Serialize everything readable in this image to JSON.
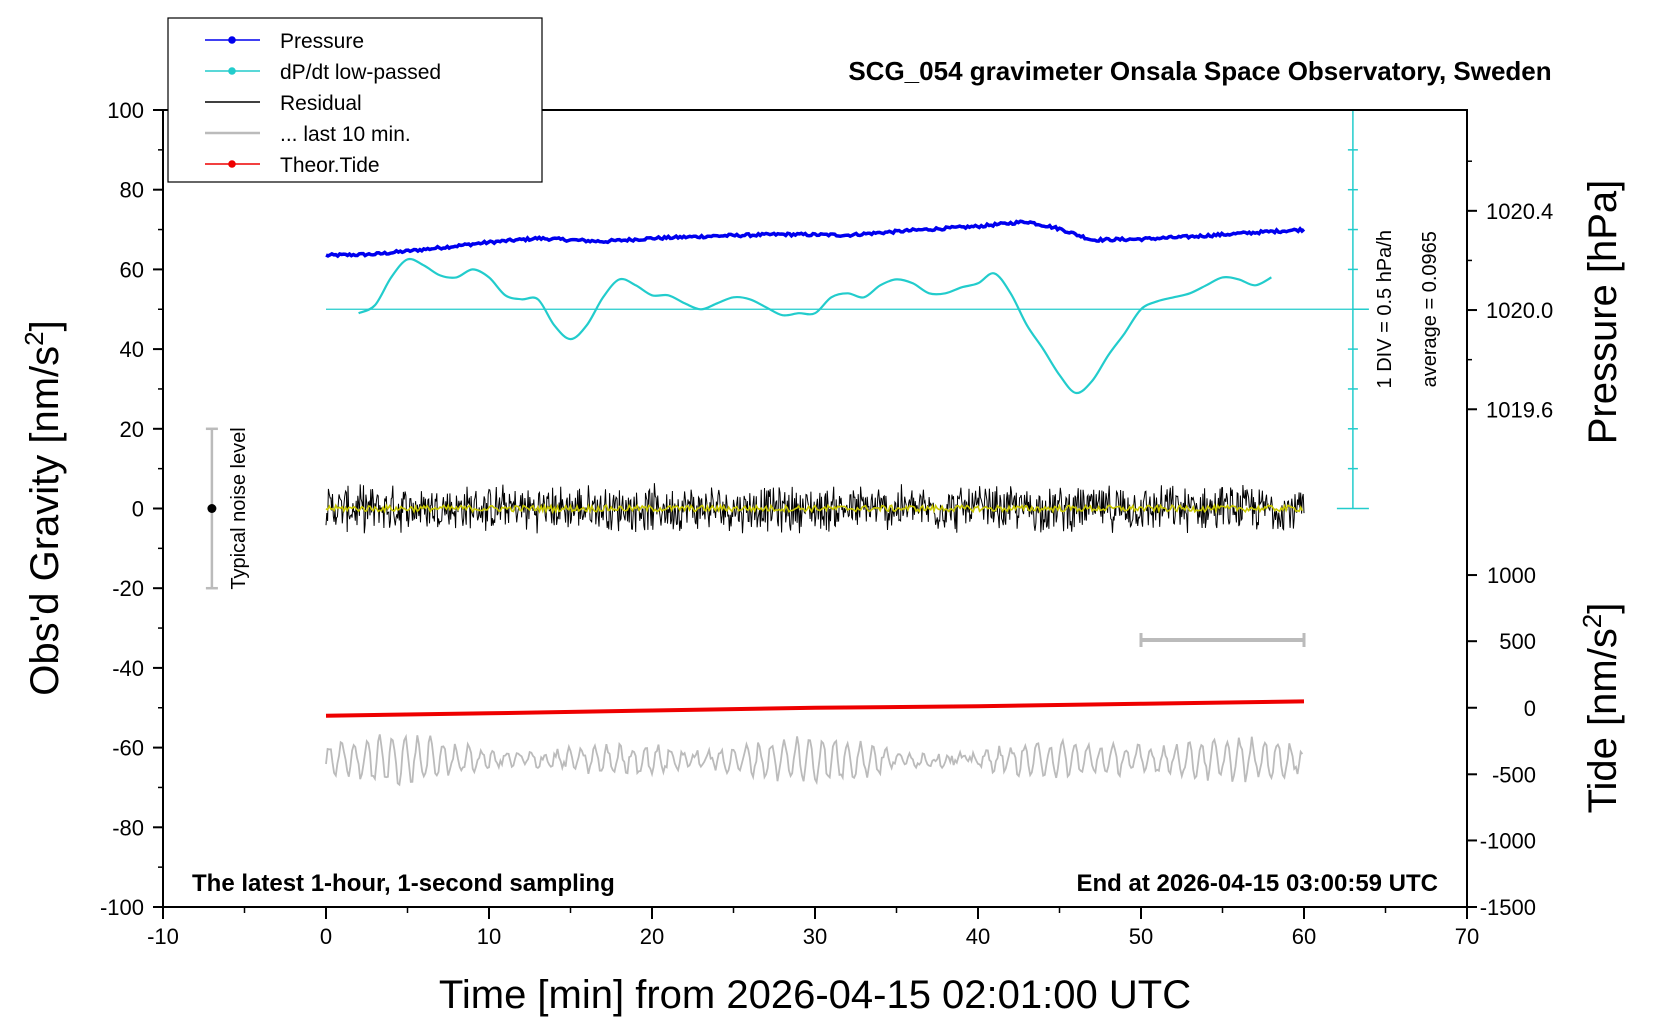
{
  "chart_data": {
    "type": "line",
    "title": "SCG_054 gravimeter Onsala Space Observatory, Sweden",
    "xlabel": "Time [min] from 2026-04-15 02:01:00 UTC",
    "ylabel_left": "Obs'd Gravity [nm/s",
    "ylabel_left_sup": "2",
    "ylabel_left_close": "]",
    "ylabel_right_top": "Pressure [hPa]",
    "ylabel_right_bottom": "Tide [nm/s",
    "ylabel_right_bottom_sup": "2",
    "ylabel_right_bottom_close": "]",
    "xlim": [
      -10,
      70
    ],
    "ylim_left": [
      -100,
      100
    ],
    "x_ticks": [
      -10,
      0,
      10,
      20,
      30,
      40,
      50,
      60,
      70
    ],
    "y_ticks_left": [
      -100,
      -80,
      -60,
      -40,
      -20,
      0,
      20,
      40,
      60,
      80,
      100
    ],
    "pressure_ticks": [
      {
        "label": "1020.4",
        "gravity_equiv": 74.7
      },
      {
        "label": "1020.0",
        "gravity_equiv": 49.8
      },
      {
        "label": "1019.6",
        "gravity_equiv": 24.9
      }
    ],
    "tide_ticks": [
      {
        "label": "1000",
        "gravity_equiv": -16.7
      },
      {
        "label": "500",
        "gravity_equiv": -33.3
      },
      {
        "label": "0",
        "gravity_equiv": -50
      },
      {
        "label": "-500",
        "gravity_equiv": -66.7
      },
      {
        "label": "-1000",
        "gravity_equiv": -83.3
      },
      {
        "label": "-1500",
        "gravity_equiv": -100
      }
    ],
    "legend": {
      "placement": "top-left",
      "entries": [
        {
          "name": "Pressure",
          "color": "#0000ee",
          "marker": true
        },
        {
          "name": "dP/dt low-passed",
          "color": "#22cccc",
          "marker": true
        },
        {
          "name": "Residual",
          "color": "#000000",
          "marker": false
        },
        {
          "name": "... last 10 min.",
          "color": "#bbbbbb",
          "marker": false
        },
        {
          "name": "Theor.Tide",
          "color": "#ee0000",
          "marker": true
        }
      ]
    },
    "annotations": {
      "bottom_left": "The latest 1-hour, 1-second sampling",
      "bottom_right": "End at 2026-04-15 03:00:59 UTC",
      "noise_label": "Typical noise level",
      "dpdt_scale": "1 DIV = 0.5 hPa/h",
      "dpdt_average": "average = 0.0965"
    },
    "noise_bar": {
      "x": -7,
      "y_center": 0,
      "y_range": [
        -20,
        20
      ]
    },
    "last10_bar": {
      "x_range": [
        50,
        60
      ],
      "y": -33
    },
    "dpdt_axis": {
      "x": 63,
      "y_range": [
        0,
        100
      ],
      "baseline": 50,
      "divisions": 10
    },
    "series": [
      {
        "name": "Pressure",
        "color": "#0000ee",
        "x": [
          0,
          3,
          6,
          10,
          13,
          17,
          20,
          24,
          28,
          32,
          36,
          40,
          43,
          45,
          47,
          50,
          53,
          56,
          60
        ],
        "y": [
          63.5,
          63.8,
          65,
          66.8,
          67.8,
          67,
          67.8,
          68.4,
          68.8,
          68.6,
          69.8,
          70.8,
          72,
          70.2,
          67.4,
          67.6,
          68.2,
          69,
          70
        ]
      },
      {
        "name": "dP/dt low-passed",
        "color": "#22cccc",
        "x": [
          2,
          3,
          4,
          5,
          6,
          7,
          8,
          9,
          10,
          11,
          12,
          13,
          14,
          15,
          16,
          17,
          18,
          19,
          20,
          21,
          22,
          23,
          24,
          25,
          26,
          27,
          28,
          29,
          30,
          31,
          32,
          33,
          34,
          35,
          36,
          37,
          38,
          39,
          40,
          41,
          42,
          43,
          44,
          45,
          46,
          47,
          48,
          49,
          50,
          51,
          52,
          53,
          54,
          55,
          56,
          57,
          58
        ],
        "y": [
          49,
          51,
          58,
          62.5,
          61,
          58.5,
          58,
          60,
          58,
          53.5,
          52.5,
          52.5,
          46,
          42.5,
          46,
          53,
          57.5,
          56,
          53.5,
          53.5,
          51.5,
          50,
          51.5,
          53,
          52.5,
          50.5,
          48.5,
          49,
          49,
          53,
          54,
          53,
          56,
          57.5,
          56.5,
          54,
          54,
          55.5,
          56.5,
          59,
          54,
          46,
          40,
          33.5,
          29,
          32,
          38.5,
          44,
          50,
          52,
          53,
          54,
          56,
          58,
          57.5,
          56,
          58
        ]
      },
      {
        "name": "Residual",
        "color": "#000000",
        "x_range": [
          0,
          60
        ],
        "y_center": 0,
        "amplitude": 6.5
      },
      {
        "name": "... last 10 min.",
        "color": "#bbbbbb",
        "x_range": [
          0,
          60
        ],
        "y_center": -63,
        "amplitude": 5.5
      },
      {
        "name": "Theor.Tide",
        "color": "#ee0000",
        "x": [
          0,
          10,
          20,
          30,
          40,
          50,
          60
        ],
        "y": [
          -52,
          -51.4,
          -50.7,
          -50,
          -49.6,
          -49,
          -48.4
        ]
      }
    ]
  }
}
